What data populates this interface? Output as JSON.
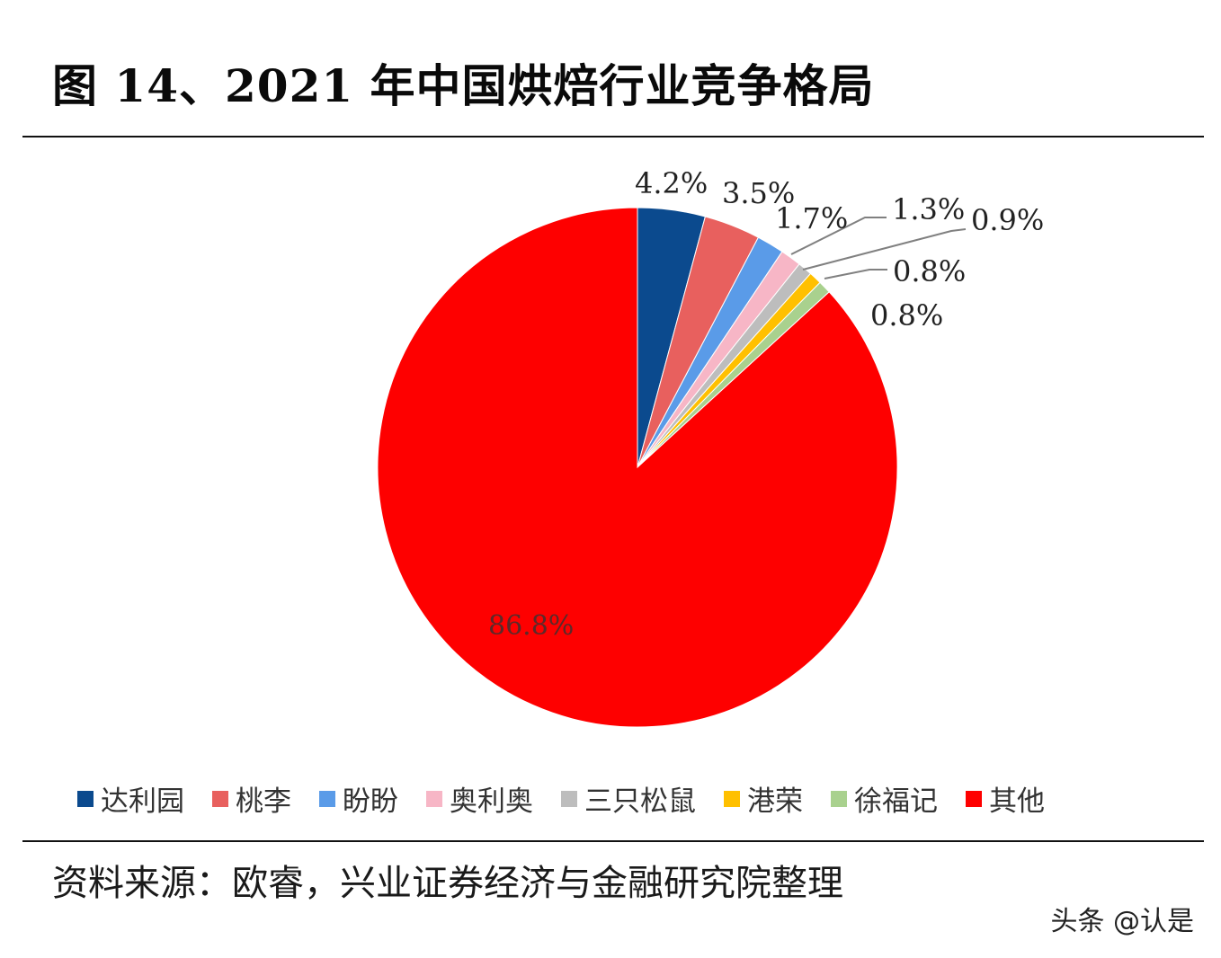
{
  "header": {
    "title": "图 14、2021 年中国烘焙行业竞争格局"
  },
  "footer": {
    "source": "资料来源：欧睿，兴业证券经济与金融研究院整理",
    "watermark": "头条 @认是"
  },
  "chart_data": {
    "type": "pie",
    "title": "图 14、2021 年中国烘焙行业竞争格局",
    "start_angle": "12 o'clock, clockwise",
    "unit": "%",
    "categories": [
      "达利园",
      "桃李",
      "盼盼",
      "奥利奥",
      "三只松鼠",
      "港荣",
      "徐福记",
      "其他"
    ],
    "values": [
      4.2,
      3.5,
      1.7,
      1.3,
      0.9,
      0.8,
      0.8,
      86.8
    ],
    "labels": [
      "4.2%",
      "3.5%",
      "1.7%",
      "1.3%",
      "0.9%",
      "0.8%",
      "0.8%",
      "86.8%"
    ],
    "colors": [
      "#0b4a8e",
      "#e8605e",
      "#5a9be8",
      "#f7b6c6",
      "#bdbdbd",
      "#ffc000",
      "#a9d18e",
      "#fe0000"
    ],
    "legend_position": "bottom",
    "source": "资料来源：欧睿，兴业证券经济与金融研究院整理"
  }
}
